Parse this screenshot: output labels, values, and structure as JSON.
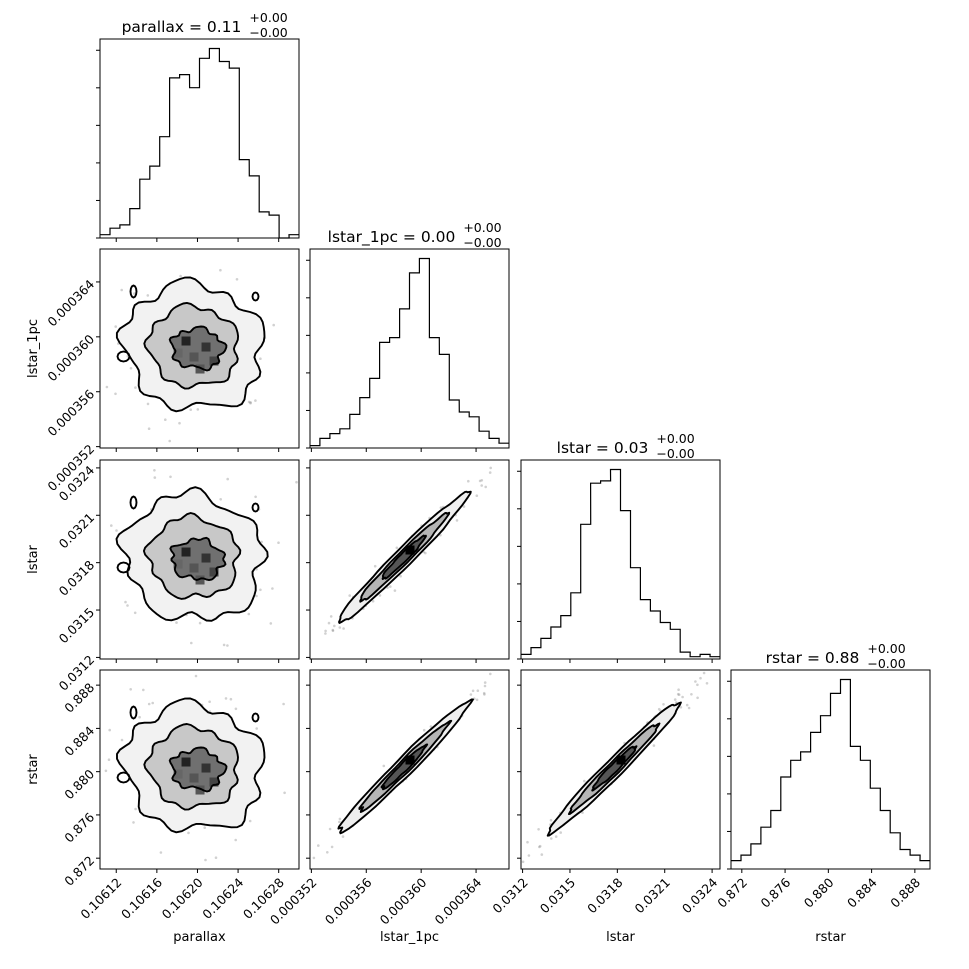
{
  "chart_data": {
    "type": "corner",
    "params": [
      "parallax",
      "lstar_1pc",
      "lstar",
      "rstar"
    ],
    "axis_labels": [
      "parallax",
      "lstar_1pc",
      "lstar",
      "rstar"
    ],
    "titles": [
      {
        "name": "parallax",
        "value": "0.11",
        "plus": "+0.00",
        "minus": "−0.00"
      },
      {
        "name": "lstar_1pc",
        "value": "0.00",
        "plus": "+0.00",
        "minus": "−0.00"
      },
      {
        "name": "lstar",
        "value": "0.03",
        "plus": "+0.00",
        "minus": "−0.00"
      },
      {
        "name": "rstar",
        "value": "0.88",
        "plus": "+0.00",
        "minus": "−0.00"
      }
    ],
    "ranges": [
      [
        0.106104,
        0.1063
      ],
      [
        0.0003519,
        0.0003664
      ],
      [
        0.03119,
        0.03245
      ],
      [
        0.871,
        0.8894
      ]
    ],
    "ticks": [
      {
        "values": [
          0.10612,
          0.10616,
          0.1062,
          0.10624,
          0.10628
        ],
        "labels": [
          "0.10612",
          "0.10616",
          "0.10620",
          "0.10624",
          "0.10628"
        ]
      },
      {
        "values": [
          0.000352,
          0.000356,
          0.00036,
          0.000364
        ],
        "labels": [
          "0.000352",
          "0.000356",
          "0.000360",
          "0.000364"
        ]
      },
      {
        "values": [
          0.0312,
          0.0315,
          0.0318,
          0.0321,
          0.0324
        ],
        "labels": [
          "0.0312",
          "0.0315",
          "0.0318",
          "0.0321",
          "0.0324"
        ]
      },
      {
        "values": [
          0.872,
          0.876,
          0.88,
          0.884,
          0.888
        ],
        "labels": [
          "0.872",
          "0.876",
          "0.880",
          "0.884",
          "0.888"
        ]
      }
    ],
    "hist": [
      [
        1,
        3,
        4,
        9,
        18,
        22,
        31,
        49,
        50,
        46,
        55,
        58,
        54,
        52,
        24,
        19,
        8,
        7,
        0,
        1
      ],
      [
        1,
        4,
        6,
        8,
        14,
        21,
        29,
        44,
        46,
        58,
        73,
        79,
        46,
        39,
        20,
        15,
        13,
        7,
        4,
        2
      ],
      [
        2,
        5,
        9,
        14,
        19,
        29,
        59,
        77,
        78,
        83,
        65,
        40,
        26,
        21,
        16,
        13,
        3,
        1,
        2,
        1
      ],
      [
        3,
        5,
        9,
        15,
        21,
        33,
        39,
        42,
        49,
        55,
        63,
        68,
        44,
        39,
        29,
        21,
        13,
        7,
        5,
        3
      ]
    ],
    "grid": false
  }
}
